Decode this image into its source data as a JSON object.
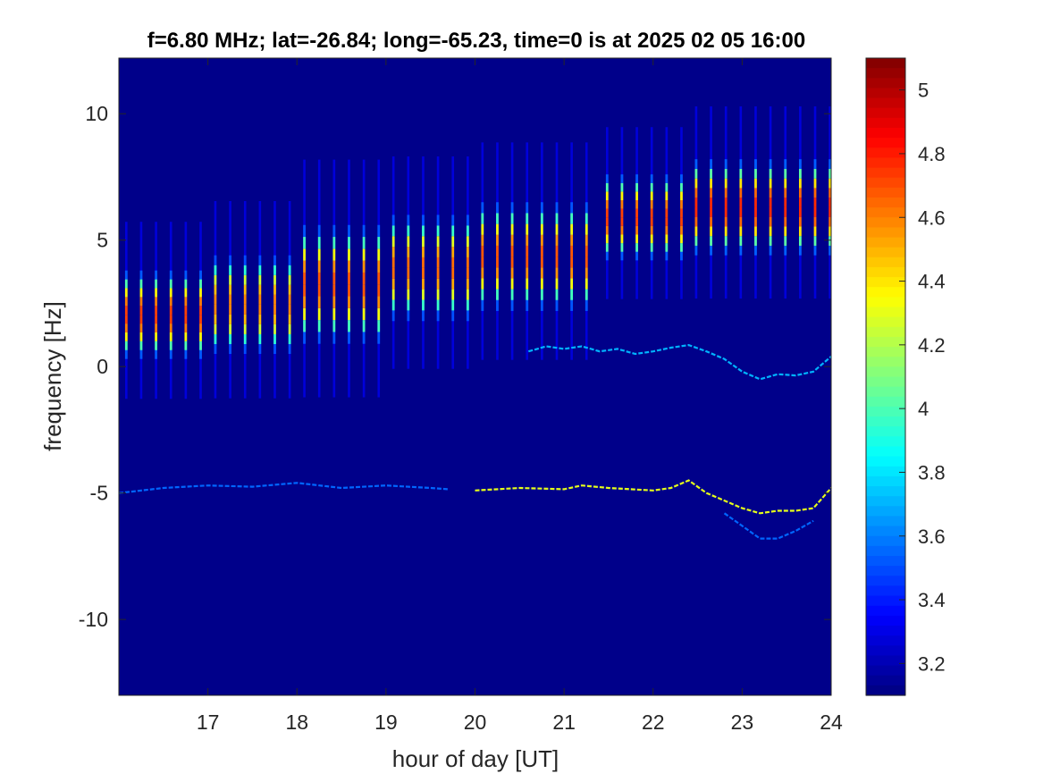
{
  "chart_data": {
    "type": "heatmap",
    "title": "f=6.80 MHz;  lat=-26.84; long=-65.23, time=0 is at 2025 02 05 16:00",
    "xlabel": "hour of day [UT]",
    "ylabel": "frequency [Hz]",
    "xlim": [
      16,
      24
    ],
    "ylim": [
      -13,
      12.2
    ],
    "xticks": [
      17,
      18,
      19,
      20,
      21,
      22,
      23,
      24
    ],
    "xtick_labels": [
      "17",
      "18",
      "19",
      "20",
      "21",
      "22",
      "23",
      "24"
    ],
    "yticks": [
      10,
      5,
      0,
      -5,
      -10
    ],
    "ytick_labels": [
      "10",
      "5",
      "0",
      "-5",
      "-10"
    ],
    "colormap": "jet",
    "clim": [
      3.1,
      5.1
    ],
    "colorbar_ticks": [
      5,
      4.8,
      4.6,
      4.4,
      4.2,
      4,
      3.8,
      3.6,
      3.4,
      3.2
    ],
    "colorbar_tick_labels": [
      "5",
      "4.8",
      "4.6",
      "4.4",
      "4.2",
      "4",
      "3.8",
      "3.6",
      "3.4",
      "3.2"
    ],
    "background_value": 3.12,
    "doppler_band_segments": [
      {
        "x_start": 16.0,
        "x_end": 17.0,
        "y_low": 0.3,
        "y_high": 3.8,
        "peak": 4.75
      },
      {
        "x_start": 17.0,
        "x_end": 18.0,
        "y_low": 0.5,
        "y_high": 4.4,
        "peak": 4.6
      },
      {
        "x_start": 18.0,
        "x_end": 19.0,
        "y_low": 0.9,
        "y_high": 5.6,
        "peak": 4.7
      },
      {
        "x_start": 19.0,
        "x_end": 20.0,
        "y_low": 1.8,
        "y_high": 6.0,
        "peak": 4.65
      },
      {
        "x_start": 20.0,
        "x_end": 21.4,
        "y_low": 2.2,
        "y_high": 6.5,
        "peak": 4.7
      },
      {
        "x_start": 21.4,
        "x_end": 22.4,
        "y_low": 4.2,
        "y_high": 7.6,
        "peak": 4.75
      },
      {
        "x_start": 22.4,
        "x_end": 24.0,
        "y_low": 4.4,
        "y_high": 8.2,
        "peak": 4.8
      }
    ],
    "pulse_spacing_hours": 0.167,
    "traces": [
      {
        "x": [
          20.6,
          20.8,
          21.0,
          21.2,
          21.4,
          21.6,
          21.8,
          22.0,
          22.2,
          22.4,
          22.6,
          22.8,
          23.0,
          23.2,
          23.4,
          23.6,
          23.8,
          24.0
        ],
        "y": [
          0.6,
          0.8,
          0.7,
          0.8,
          0.6,
          0.7,
          0.5,
          0.6,
          0.75,
          0.85,
          0.6,
          0.3,
          -0.2,
          -0.5,
          -0.3,
          -0.35,
          -0.2,
          0.4
        ],
        "value": 3.7
      },
      {
        "x": [
          16.0,
          16.5,
          17.0,
          17.5,
          18.0,
          18.5,
          19.0,
          19.5,
          19.7
        ],
        "y": [
          -5.0,
          -4.8,
          -4.7,
          -4.75,
          -4.6,
          -4.8,
          -4.7,
          -4.8,
          -4.85
        ],
        "value": 3.55
      },
      {
        "x": [
          20.0,
          20.5,
          21.0,
          21.2,
          21.5,
          22.0,
          22.2,
          22.4,
          22.6,
          22.8,
          23.0,
          23.2,
          23.4,
          23.6,
          23.8,
          24.0
        ],
        "y": [
          -4.9,
          -4.8,
          -4.85,
          -4.7,
          -4.8,
          -4.9,
          -4.8,
          -4.5,
          -5.0,
          -5.3,
          -5.6,
          -5.8,
          -5.7,
          -5.7,
          -5.6,
          -4.8
        ],
        "value": 4.3
      },
      {
        "x": [
          22.8,
          23.0,
          23.2,
          23.4,
          23.6,
          23.8
        ],
        "y": [
          -5.8,
          -6.3,
          -6.8,
          -6.8,
          -6.5,
          -6.1
        ],
        "value": 3.55
      }
    ]
  }
}
